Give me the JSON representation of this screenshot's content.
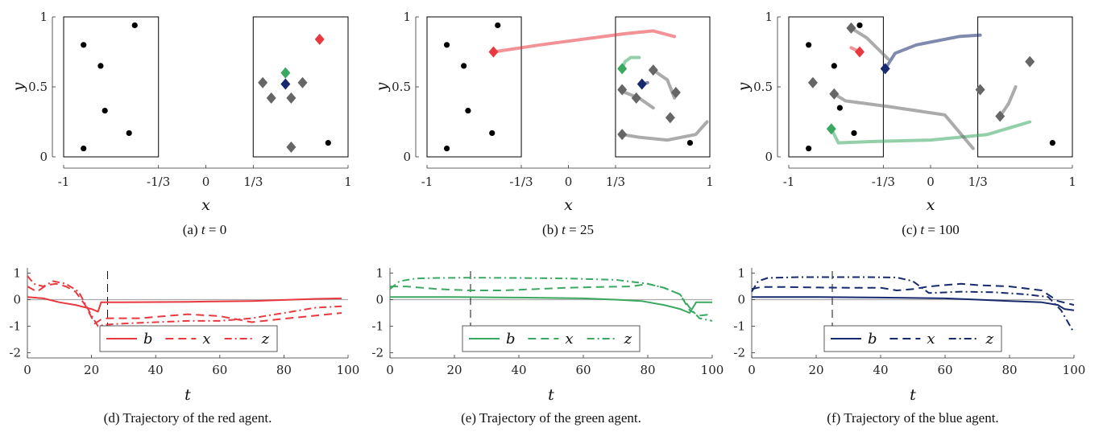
{
  "colors": {
    "red": "#e8393f",
    "green": "#3aa860",
    "blue": "#172a6e",
    "gray": "#666666",
    "light_green": "#2ee06a"
  },
  "chart_data": [
    {
      "id": "a",
      "type": "scatter",
      "caption_prefix": "(a)",
      "caption_var": "t",
      "caption_value": "= 0",
      "xlabel": "x",
      "ylabel": "y",
      "xlim": [
        -1,
        1
      ],
      "ylim": [
        0,
        1
      ],
      "xticks": [
        "-1",
        "-1/3",
        "0",
        "1/3",
        "1"
      ],
      "yticks": [
        "0",
        "0.5",
        "1"
      ],
      "regions": [
        {
          "x0": -1,
          "x1": -0.333,
          "y0": 0,
          "y1": 1
        },
        {
          "x0": 0.333,
          "x1": 1,
          "y0": 0,
          "y1": 1
        }
      ],
      "targets": [
        {
          "x": -0.86,
          "y": 0.06
        },
        {
          "x": -0.86,
          "y": 0.8
        },
        {
          "x": -0.74,
          "y": 0.65
        },
        {
          "x": -0.71,
          "y": 0.33
        },
        {
          "x": -0.54,
          "y": 0.17
        },
        {
          "x": -0.5,
          "y": 0.94
        },
        {
          "x": 0.86,
          "y": 0.1
        }
      ],
      "agents": [
        {
          "color": "gray",
          "x": 0.4,
          "y": 0.53
        },
        {
          "color": "gray",
          "x": 0.46,
          "y": 0.42
        },
        {
          "color": "gray",
          "x": 0.6,
          "y": 0.42
        },
        {
          "color": "gray",
          "x": 0.68,
          "y": 0.53
        },
        {
          "color": "gray",
          "x": 0.6,
          "y": 0.07
        },
        {
          "color": "green",
          "x": 0.56,
          "y": 0.6
        },
        {
          "color": "blue",
          "x": 0.56,
          "y": 0.52
        },
        {
          "color": "red",
          "x": 0.8,
          "y": 0.84
        }
      ],
      "trails": []
    },
    {
      "id": "b",
      "type": "scatter",
      "caption_prefix": "(b)",
      "caption_var": "t",
      "caption_value": "= 25",
      "xlabel": "x",
      "ylabel": "y",
      "xlim": [
        -1,
        1
      ],
      "ylim": [
        0,
        1
      ],
      "xticks": [
        "-1",
        "-1/3",
        "0",
        "1/3",
        "1"
      ],
      "yticks": [
        "0",
        "0.5",
        "1"
      ],
      "regions": [
        {
          "x0": -1,
          "x1": -0.333,
          "y0": 0,
          "y1": 1
        },
        {
          "x0": 0.333,
          "x1": 1,
          "y0": 0,
          "y1": 1
        }
      ],
      "targets": [
        {
          "x": -0.86,
          "y": 0.06
        },
        {
          "x": -0.86,
          "y": 0.8
        },
        {
          "x": -0.74,
          "y": 0.65
        },
        {
          "x": -0.71,
          "y": 0.33
        },
        {
          "x": -0.54,
          "y": 0.17
        },
        {
          "x": -0.5,
          "y": 0.94
        },
        {
          "x": 0.86,
          "y": 0.1
        }
      ],
      "agents": [
        {
          "color": "red",
          "x": -0.53,
          "y": 0.75
        },
        {
          "color": "green",
          "x": 0.38,
          "y": 0.63
        },
        {
          "color": "blue",
          "x": 0.52,
          "y": 0.52
        },
        {
          "color": "gray",
          "x": 0.38,
          "y": 0.48
        },
        {
          "color": "gray",
          "x": 0.48,
          "y": 0.42
        },
        {
          "color": "gray",
          "x": 0.72,
          "y": 0.28
        },
        {
          "color": "gray",
          "x": 0.38,
          "y": 0.16
        },
        {
          "color": "gray",
          "x": 0.6,
          "y": 0.62
        },
        {
          "color": "gray",
          "x": 0.76,
          "y": 0.46
        }
      ],
      "trails": [
        {
          "color": "red",
          "points": [
            [
              0.75,
              0.86
            ],
            [
              0.6,
              0.9
            ],
            [
              0.4,
              0.88
            ],
            [
              0.1,
              0.84
            ],
            [
              -0.2,
              0.8
            ],
            [
              -0.53,
              0.75
            ]
          ]
        },
        {
          "color": "green",
          "points": [
            [
              0.5,
              0.71
            ],
            [
              0.44,
              0.71
            ],
            [
              0.4,
              0.68
            ],
            [
              0.38,
              0.63
            ]
          ]
        },
        {
          "color": "blue",
          "points": [
            [
              0.56,
              0.53
            ],
            [
              0.52,
              0.52
            ]
          ]
        },
        {
          "color": "gray",
          "points": [
            [
              0.6,
              0.35
            ],
            [
              0.5,
              0.42
            ],
            [
              0.4,
              0.46
            ],
            [
              0.38,
              0.48
            ]
          ]
        },
        {
          "color": "gray",
          "points": [
            [
              0.98,
              0.25
            ],
            [
              0.9,
              0.16
            ],
            [
              0.7,
              0.12
            ],
            [
              0.5,
              0.14
            ],
            [
              0.38,
              0.16
            ]
          ]
        },
        {
          "color": "gray",
          "points": [
            [
              0.75,
              0.42
            ],
            [
              0.7,
              0.55
            ],
            [
              0.6,
              0.62
            ]
          ]
        }
      ]
    },
    {
      "id": "c",
      "type": "scatter",
      "caption_prefix": "(c)",
      "caption_var": "t",
      "caption_value": "= 100",
      "xlabel": "x",
      "ylabel": "y",
      "xlim": [
        -1,
        1
      ],
      "ylim": [
        0,
        1
      ],
      "xticks": [
        "-1",
        "-1/3",
        "0",
        "1/3",
        "1"
      ],
      "yticks": [
        "0",
        "0.5",
        "1"
      ],
      "regions": [
        {
          "x0": -1,
          "x1": -0.333,
          "y0": 0,
          "y1": 1
        },
        {
          "x0": 0.333,
          "x1": 1,
          "y0": 0,
          "y1": 1
        }
      ],
      "targets": [
        {
          "x": -0.86,
          "y": 0.06
        },
        {
          "x": -0.86,
          "y": 0.8
        },
        {
          "x": -0.54,
          "y": 0.17
        },
        {
          "x": -0.5,
          "y": 0.94
        },
        {
          "x": -0.68,
          "y": 0.65
        },
        {
          "x": -0.64,
          "y": 0.35
        },
        {
          "x": 0.86,
          "y": 0.1
        }
      ],
      "agents": [
        {
          "color": "red",
          "x": -0.5,
          "y": 0.75
        },
        {
          "color": "green",
          "x": -0.7,
          "y": 0.2
        },
        {
          "color": "blue",
          "x": -0.32,
          "y": 0.63
        },
        {
          "color": "gray",
          "x": -0.56,
          "y": 0.92
        },
        {
          "color": "gray",
          "x": -0.83,
          "y": 0.53
        },
        {
          "color": "gray",
          "x": -0.68,
          "y": 0.45
        },
        {
          "color": "gray",
          "x": 0.35,
          "y": 0.48
        },
        {
          "color": "gray",
          "x": 0.7,
          "y": 0.68
        },
        {
          "color": "gray",
          "x": 0.49,
          "y": 0.29
        }
      ],
      "trails": [
        {
          "color": "red",
          "points": [
            [
              -0.56,
              0.78
            ],
            [
              -0.52,
              0.76
            ],
            [
              -0.5,
              0.75
            ]
          ]
        },
        {
          "color": "green",
          "points": [
            [
              0.7,
              0.25
            ],
            [
              0.4,
              0.16
            ],
            [
              0.0,
              0.12
            ],
            [
              -0.4,
              0.11
            ],
            [
              -0.65,
              0.1
            ],
            [
              -0.7,
              0.2
            ]
          ]
        },
        {
          "color": "blue",
          "points": [
            [
              0.35,
              0.87
            ],
            [
              0.2,
              0.86
            ],
            [
              -0.1,
              0.8
            ],
            [
              -0.25,
              0.74
            ],
            [
              -0.32,
              0.63
            ]
          ]
        },
        {
          "color": "gray",
          "points": [
            [
              -0.3,
              0.7
            ],
            [
              -0.45,
              0.85
            ],
            [
              -0.56,
              0.92
            ]
          ]
        },
        {
          "color": "gray",
          "points": [
            [
              0.3,
              0.06
            ],
            [
              0.1,
              0.3
            ],
            [
              -0.3,
              0.36
            ],
            [
              -0.6,
              0.4
            ],
            [
              -0.68,
              0.45
            ]
          ]
        },
        {
          "color": "gray",
          "points": [
            [
              0.6,
              0.5
            ],
            [
              0.55,
              0.38
            ],
            [
              0.49,
              0.29
            ]
          ]
        }
      ]
    },
    {
      "id": "d",
      "type": "line",
      "caption": "(d) Trajectory of the red agent.",
      "color": "red",
      "xlabel": "t",
      "xlim": [
        0,
        100
      ],
      "ylim": [
        -2.2,
        1.2
      ],
      "xticks": [
        0,
        20,
        40,
        60,
        80,
        100
      ],
      "yticks": [
        -2,
        -1,
        0,
        1
      ],
      "marker_t": 25,
      "legend": [
        "b",
        "x",
        "z"
      ],
      "series": [
        {
          "name": "b",
          "style": "solid",
          "x": [
            0,
            5,
            10,
            15,
            20,
            22,
            23,
            30,
            50,
            70,
            90,
            98
          ],
          "y": [
            0.1,
            0.05,
            -0.1,
            -0.2,
            -0.35,
            -0.45,
            -0.1,
            -0.1,
            -0.08,
            -0.05,
            0.03,
            0.05
          ]
        },
        {
          "name": "x",
          "style": "dashed",
          "x": [
            0,
            3,
            6,
            9,
            12,
            15,
            18,
            21,
            23,
            25,
            35,
            50,
            60,
            70,
            80,
            90,
            98
          ],
          "y": [
            0.5,
            0.3,
            0.55,
            0.6,
            0.5,
            0.3,
            -0.2,
            -0.9,
            -0.75,
            -0.7,
            -0.7,
            -0.55,
            -0.62,
            -0.85,
            -0.72,
            -0.6,
            -0.5
          ]
        },
        {
          "name": "z",
          "style": "dashdot",
          "x": [
            0,
            2,
            5,
            8,
            12,
            16,
            20,
            22,
            24,
            30,
            40,
            50,
            60,
            70,
            80,
            90,
            98
          ],
          "y": [
            0.9,
            0.6,
            0.5,
            0.7,
            0.6,
            0.3,
            -0.6,
            -1.0,
            -0.95,
            -0.9,
            -0.85,
            -0.8,
            -0.8,
            -0.7,
            -0.5,
            -0.3,
            -0.25
          ]
        }
      ]
    },
    {
      "id": "e",
      "type": "line",
      "caption": "(e) Trajectory of the green agent.",
      "color": "green",
      "xlabel": "t",
      "xlim": [
        0,
        100
      ],
      "ylim": [
        -2.2,
        1.2
      ],
      "xticks": [
        0,
        20,
        40,
        60,
        80,
        100
      ],
      "yticks": [
        -2,
        -1,
        0,
        1
      ],
      "marker_t": 25,
      "legend": [
        "b",
        "x",
        "z"
      ],
      "series": [
        {
          "name": "b",
          "style": "solid",
          "x": [
            0,
            20,
            40,
            60,
            70,
            78,
            85,
            90,
            93,
            95,
            100
          ],
          "y": [
            0.1,
            0.1,
            0.08,
            0.05,
            0.0,
            -0.05,
            -0.2,
            -0.35,
            -0.5,
            -0.1,
            -0.1
          ]
        },
        {
          "name": "x",
          "style": "dashed",
          "x": [
            0,
            5,
            15,
            25,
            35,
            45,
            55,
            65,
            75,
            80,
            85,
            90,
            93,
            96,
            100
          ],
          "y": [
            0.5,
            0.5,
            0.4,
            0.35,
            0.35,
            0.4,
            0.45,
            0.48,
            0.5,
            0.6,
            0.45,
            0.2,
            -0.4,
            -0.6,
            -0.55
          ]
        },
        {
          "name": "z",
          "style": "dashdot",
          "x": [
            0,
            3,
            8,
            15,
            25,
            40,
            55,
            70,
            80,
            85,
            90,
            93,
            96,
            100
          ],
          "y": [
            0.4,
            0.7,
            0.8,
            0.82,
            0.83,
            0.82,
            0.8,
            0.75,
            0.6,
            0.45,
            0.2,
            -0.3,
            -0.7,
            -0.8
          ]
        }
      ]
    },
    {
      "id": "f",
      "type": "line",
      "caption": "(f) Trajectory of the blue agent.",
      "color": "blue",
      "xlabel": "t",
      "xlim": [
        0,
        100
      ],
      "ylim": [
        -2.2,
        1.2
      ],
      "xticks": [
        0,
        20,
        40,
        60,
        80,
        100
      ],
      "yticks": [
        -2,
        -1,
        0,
        1
      ],
      "marker_t": 25,
      "legend": [
        "b",
        "x",
        "z"
      ],
      "series": [
        {
          "name": "b",
          "style": "solid",
          "x": [
            0,
            20,
            40,
            60,
            70,
            80,
            90,
            95,
            97,
            100
          ],
          "y": [
            0.1,
            0.1,
            0.08,
            0.05,
            0.0,
            -0.05,
            -0.1,
            -0.2,
            -0.35,
            -0.4
          ]
        },
        {
          "name": "x",
          "style": "dashed",
          "x": [
            0,
            3,
            10,
            20,
            30,
            40,
            45,
            50,
            55,
            60,
            65,
            70,
            80,
            90,
            95,
            100
          ],
          "y": [
            0.4,
            0.48,
            0.48,
            0.46,
            0.45,
            0.45,
            0.35,
            0.4,
            0.5,
            0.55,
            0.6,
            0.55,
            0.5,
            0.35,
            -0.05,
            -0.2
          ]
        },
        {
          "name": "z",
          "style": "dashdot",
          "x": [
            0,
            2,
            5,
            15,
            25,
            35,
            45,
            50,
            55,
            65,
            75,
            85,
            92,
            96,
            100
          ],
          "y": [
            0.3,
            0.7,
            0.82,
            0.85,
            0.85,
            0.85,
            0.84,
            0.7,
            0.25,
            0.3,
            0.28,
            0.2,
            0.1,
            -0.4,
            -1.25
          ]
        }
      ]
    }
  ]
}
